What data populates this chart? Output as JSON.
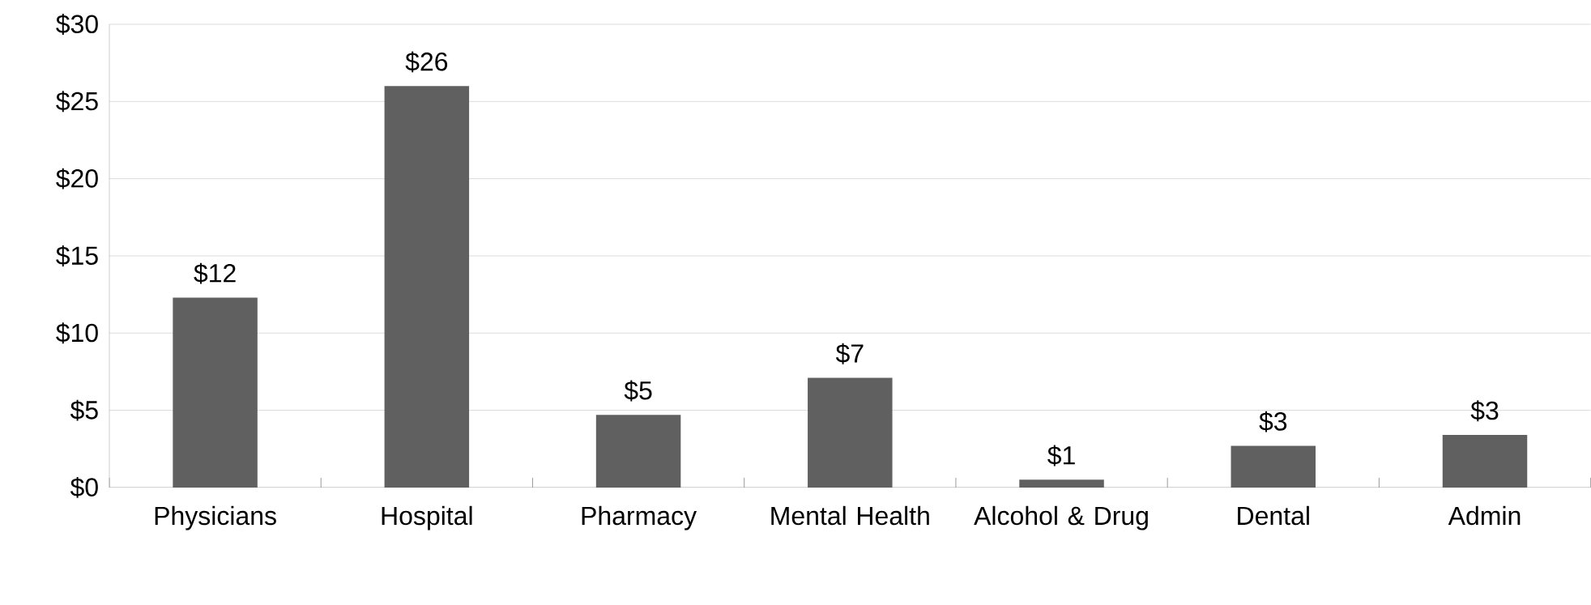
{
  "chart_data": {
    "type": "bar",
    "categories": [
      "Physicians",
      "Hospital",
      "Pharmacy",
      "Mental Health",
      "Alcohol & Drug",
      "Dental",
      "Admin"
    ],
    "values": [
      12.3,
      26,
      4.7,
      7.1,
      0.5,
      2.7,
      3.4
    ],
    "value_labels": [
      "$12",
      "$26",
      "$5",
      "$7",
      "$1",
      "$3",
      "$3"
    ],
    "color": "#606060",
    "ylim": [
      0,
      30
    ],
    "yticks": [
      {
        "value": 0,
        "label": "$0"
      },
      {
        "value": 5,
        "label": "$5"
      },
      {
        "value": 10,
        "label": "$10"
      },
      {
        "value": 15,
        "label": "$15"
      },
      {
        "value": 20,
        "label": "$20"
      },
      {
        "value": 25,
        "label": "$25"
      },
      {
        "value": 30,
        "label": "$30"
      }
    ],
    "grid": "y"
  }
}
